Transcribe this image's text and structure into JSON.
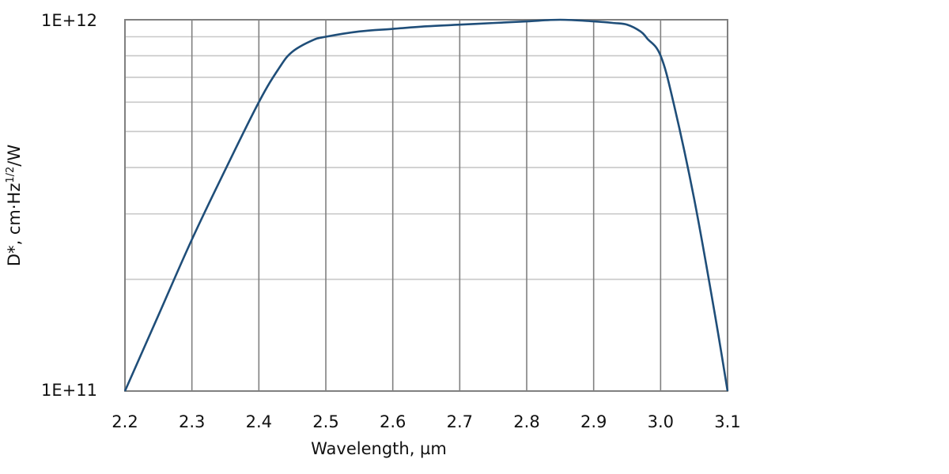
{
  "chart_data": {
    "type": "line",
    "title": "",
    "xlabel": "Wavelength, µm",
    "ylabel": "D*, cm·Hz^(1/2)/W",
    "ylabel_parts": {
      "main": "D*, cm·Hz",
      "sup": "1/2",
      "tail": "/W"
    },
    "xlim": [
      2.2,
      3.1
    ],
    "ylim": [
      100000000000.0,
      1000000000000.0
    ],
    "yscale": "log",
    "grid": true,
    "legend": null,
    "x_ticks": [
      "2.2",
      "2.3",
      "2.4",
      "2.5",
      "2.6",
      "2.7",
      "2.8",
      "2.9",
      "3.0",
      "3.1"
    ],
    "y_ticks": [
      "1E+11",
      "1E+12"
    ],
    "series": [
      {
        "name": "D*",
        "color": "#1f4e79",
        "x": [
          2.2,
          2.25,
          2.3,
          2.35,
          2.4,
          2.43,
          2.45,
          2.48,
          2.5,
          2.55,
          2.6,
          2.65,
          2.7,
          2.75,
          2.8,
          2.85,
          2.9,
          2.93,
          2.95,
          2.97,
          2.98,
          3.0,
          3.02,
          3.05,
          3.08,
          3.1
        ],
        "y": [
          100000000000.0,
          160000000000.0,
          256000000000.0,
          395000000000.0,
          600000000000.0,
          740000000000.0,
          820000000000.0,
          880000000000.0,
          900000000000.0,
          930000000000.0,
          945000000000.0,
          960000000000.0,
          970000000000.0,
          980000000000.0,
          990000000000.0,
          1000000000000.0,
          990000000000.0,
          980000000000.0,
          970000000000.0,
          930000000000.0,
          890000000000.0,
          800000000000.0,
          590000000000.0,
          330000000000.0,
          165000000000.0,
          100000000000.0
        ]
      }
    ]
  },
  "colors": {
    "axis": "#808080",
    "major_grid": "#808080",
    "minor_grid": "#c8c8c8",
    "line": "#1f4e79"
  }
}
